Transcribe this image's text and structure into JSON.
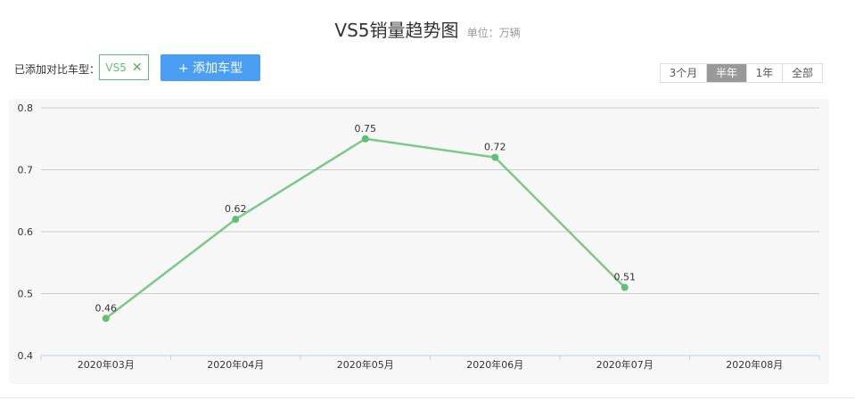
{
  "header": {
    "title": "VS5销量趋势图",
    "unit": "单位：万辆"
  },
  "compare": {
    "label": "已添加对比车型：",
    "models": [
      {
        "name": "VS5",
        "remove_icon": "close-icon"
      }
    ],
    "add_button": "+ 添加车型"
  },
  "range": {
    "options": [
      "3个月",
      "半年",
      "1年",
      "全部"
    ],
    "selected": "半年"
  },
  "colors": {
    "line": "#7cc98a",
    "point": "#5fbf73",
    "accent": "#4a9ff5",
    "grid": "#cccccc",
    "panel": "#f7f7f7"
  },
  "chart_data": {
    "type": "line",
    "categories": [
      "2020年03月",
      "2020年04月",
      "2020年05月",
      "2020年06月",
      "2020年07月",
      "2020年08月"
    ],
    "series": [
      {
        "values": [
          0.46,
          0.62,
          0.75,
          0.72,
          0.51,
          null
        ]
      }
    ],
    "data_labels": [
      "0.46",
      "0.62",
      "0.75",
      "0.72",
      "0.51"
    ],
    "yticks": [
      "0.4",
      "0.5",
      "0.6",
      "0.7",
      "0.8"
    ],
    "ylim": [
      0.4,
      0.8
    ],
    "grid": true,
    "legend": "none"
  }
}
